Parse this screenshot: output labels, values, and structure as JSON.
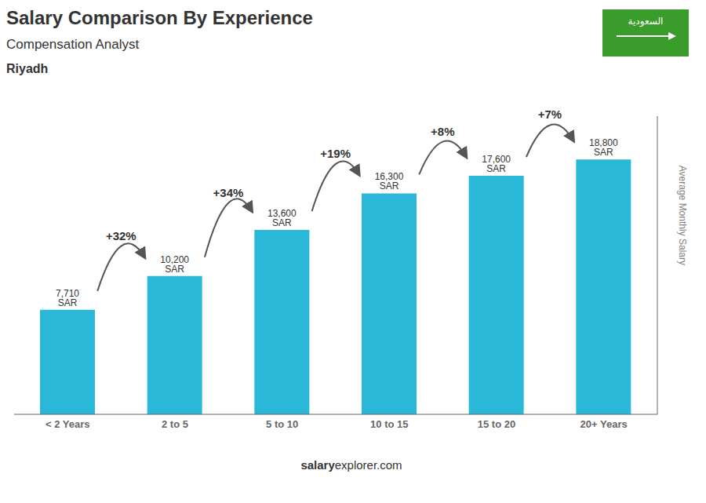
{
  "chart_data": {
    "type": "bar",
    "title": "Salary Comparison By Experience",
    "subtitle": "Compensation Analyst",
    "city": "Riyadh",
    "ylabel": "Average Monthly Salary",
    "footer": [
      "salary",
      "explorer.com"
    ],
    "flag_text": "السعودية",
    "flag_color": "#3a9c2a",
    "categories": [
      "< 2 Years",
      "2 to 5",
      "5 to 10",
      "10 to 15",
      "15 to 20",
      "20+ Years"
    ],
    "values": [
      7710,
      10200,
      13600,
      16300,
      17600,
      18800
    ],
    "value_labels": [
      "7,710 SAR",
      "10,200 SAR",
      "13,600 SAR",
      "16,300 SAR",
      "17,600 SAR",
      "18,800 SAR"
    ],
    "annotations": [
      "+32%",
      "+34%",
      "+19%",
      "+8%",
      "+7%"
    ],
    "color": "#29b8d8",
    "ylim": [
      0,
      22000
    ],
    "data_labels": true,
    "tick_labels": "x",
    "grid": false
  }
}
